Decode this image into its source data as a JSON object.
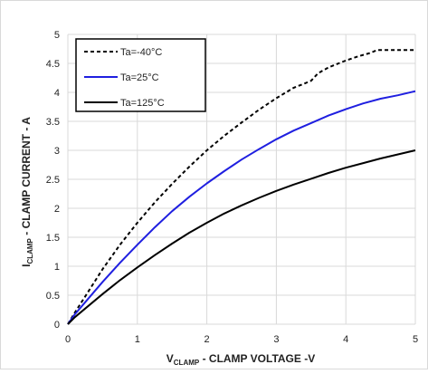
{
  "chart_data": {
    "type": "line",
    "xlabel_main": "V",
    "xlabel_sub": "CLAMP",
    "xlabel_rest": " - CLAMP VOLTAGE -V",
    "ylabel_main": "I",
    "ylabel_sub": "CLAMP",
    "ylabel_rest": " - CLAMP CURRENT - A",
    "xlim": [
      0,
      5
    ],
    "ylim": [
      0,
      5
    ],
    "xticks": [
      "0",
      "1",
      "2",
      "3",
      "4",
      "5"
    ],
    "yticks": [
      "0",
      "0.5",
      "1",
      "1.5",
      "2",
      "2.5",
      "3",
      "3.5",
      "4",
      "4.5",
      "5"
    ],
    "grid": true,
    "legend_position": "top-left",
    "series": [
      {
        "name": "Ta=-40°C",
        "color": "#000000",
        "dash": "dashed",
        "x": [
          0,
          0.1,
          0.25,
          0.5,
          0.75,
          1.0,
          1.25,
          1.5,
          1.75,
          2.0,
          2.25,
          2.5,
          2.75,
          3.0,
          3.25,
          3.4,
          3.5,
          3.6,
          3.75,
          4.0,
          4.2,
          4.35,
          4.45,
          5.0
        ],
        "y": [
          0,
          0.2,
          0.48,
          0.95,
          1.37,
          1.75,
          2.1,
          2.42,
          2.72,
          3.0,
          3.25,
          3.48,
          3.7,
          3.9,
          4.08,
          4.15,
          4.2,
          4.33,
          4.43,
          4.55,
          4.63,
          4.68,
          4.73,
          4.73
        ]
      },
      {
        "name": "Ta=25°C",
        "color": "#1f1fe0",
        "dash": "solid",
        "x": [
          0,
          0.1,
          0.25,
          0.5,
          0.75,
          1.0,
          1.25,
          1.5,
          1.75,
          2.0,
          2.25,
          2.5,
          2.75,
          3.0,
          3.25,
          3.5,
          3.75,
          4.0,
          4.25,
          4.5,
          4.75,
          5.0
        ],
        "y": [
          0,
          0.17,
          0.38,
          0.73,
          1.06,
          1.37,
          1.67,
          1.95,
          2.2,
          2.43,
          2.64,
          2.84,
          3.02,
          3.19,
          3.34,
          3.47,
          3.6,
          3.71,
          3.81,
          3.89,
          3.95,
          4.02
        ]
      },
      {
        "name": "Ta=125°C",
        "color": "#000000",
        "dash": "solid",
        "x": [
          0,
          0.1,
          0.25,
          0.5,
          0.75,
          1.0,
          1.25,
          1.5,
          1.75,
          2.0,
          2.25,
          2.5,
          2.75,
          3.0,
          3.25,
          3.5,
          3.75,
          4.0,
          4.25,
          4.5,
          4.75,
          5.0
        ],
        "y": [
          0,
          0.12,
          0.27,
          0.52,
          0.76,
          0.98,
          1.19,
          1.39,
          1.58,
          1.75,
          1.91,
          2.05,
          2.18,
          2.3,
          2.41,
          2.51,
          2.61,
          2.7,
          2.78,
          2.86,
          2.93,
          3.0
        ]
      }
    ]
  }
}
